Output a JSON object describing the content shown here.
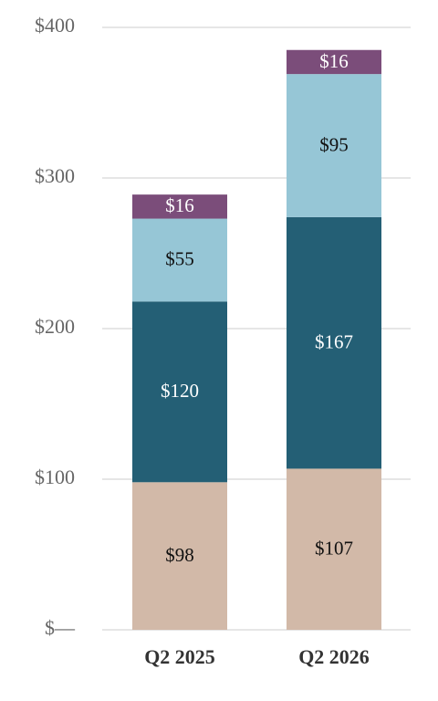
{
  "chart_data": {
    "type": "stacked_bar",
    "categories": [
      "Q2 2025",
      "Q2 2026"
    ],
    "series": [
      {
        "color": "#d2b9a8",
        "values": [
          98,
          107
        ],
        "value_labels": [
          "$98",
          "$107"
        ]
      },
      {
        "color": "#245f75",
        "values": [
          120,
          167
        ],
        "value_labels": [
          "$120",
          "$167"
        ]
      },
      {
        "color": "#96c6d6",
        "values": [
          55,
          95
        ],
        "value_labels": [
          "$55",
          "$95"
        ]
      },
      {
        "color": "#7b4d7a",
        "values": [
          16,
          16
        ],
        "value_labels": [
          "$16",
          "$16"
        ]
      }
    ],
    "ylim": [
      0,
      400
    ],
    "yticks": [
      {
        "value": 0,
        "label": "$—"
      },
      {
        "value": 100,
        "label": "$100"
      },
      {
        "value": 200,
        "label": "$200"
      },
      {
        "value": 300,
        "label": "$300"
      },
      {
        "value": 400,
        "label": "$400"
      }
    ],
    "grid": true
  }
}
